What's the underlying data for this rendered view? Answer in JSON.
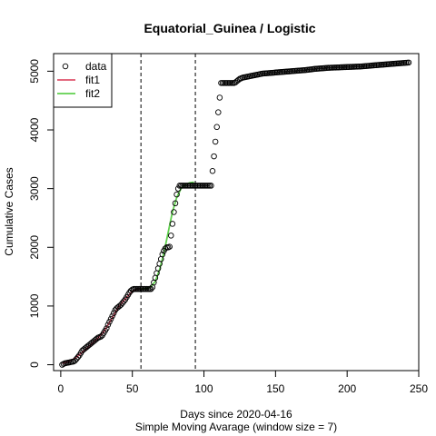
{
  "chart_data": {
    "type": "scatter",
    "title": "Equatorial_Guinea / Logistic",
    "xlabel": "Days since 2020-04-16",
    "xlabel2": "Simple Moving Avarage (window size = 7)",
    "ylabel": "Cumulative Cases",
    "xlim": [
      -5,
      250
    ],
    "ylim": [
      -100,
      5300
    ],
    "x_ticks": [
      0,
      50,
      100,
      150,
      200,
      250
    ],
    "y_ticks": [
      0,
      1000,
      2000,
      3000,
      4000,
      5000
    ],
    "vlines": [
      56,
      94
    ],
    "legend": {
      "position": "top-left",
      "entries": [
        {
          "label": "data",
          "kind": "point",
          "color": "#000000"
        },
        {
          "label": "fit1",
          "kind": "line",
          "color": "#DF536B"
        },
        {
          "label": "fit2",
          "kind": "line",
          "color": "#61D04F"
        }
      ]
    },
    "series": [
      {
        "name": "data",
        "points": [
          [
            1,
            0
          ],
          [
            2,
            15
          ],
          [
            3,
            25
          ],
          [
            4,
            30
          ],
          [
            5,
            35
          ],
          [
            6,
            40
          ],
          [
            7,
            45
          ],
          [
            8,
            50
          ],
          [
            9,
            55
          ],
          [
            10,
            70
          ],
          [
            11,
            100
          ],
          [
            12,
            130
          ],
          [
            13,
            160
          ],
          [
            14,
            200
          ],
          [
            15,
            240
          ],
          [
            16,
            260
          ],
          [
            17,
            280
          ],
          [
            18,
            300
          ],
          [
            19,
            320
          ],
          [
            20,
            340
          ],
          [
            21,
            360
          ],
          [
            22,
            380
          ],
          [
            23,
            400
          ],
          [
            24,
            420
          ],
          [
            25,
            440
          ],
          [
            26,
            460
          ],
          [
            27,
            470
          ],
          [
            28,
            480
          ],
          [
            29,
            500
          ],
          [
            30,
            540
          ],
          [
            31,
            580
          ],
          [
            32,
            620
          ],
          [
            33,
            680
          ],
          [
            34,
            730
          ],
          [
            35,
            780
          ],
          [
            36,
            830
          ],
          [
            37,
            880
          ],
          [
            38,
            930
          ],
          [
            39,
            960
          ],
          [
            40,
            980
          ],
          [
            41,
            1000
          ],
          [
            42,
            1020
          ],
          [
            43,
            1050
          ],
          [
            44,
            1080
          ],
          [
            45,
            1110
          ],
          [
            46,
            1150
          ],
          [
            47,
            1190
          ],
          [
            48,
            1230
          ],
          [
            49,
            1260
          ],
          [
            50,
            1280
          ],
          [
            51,
            1290
          ],
          [
            52,
            1290
          ],
          [
            53,
            1290
          ],
          [
            54,
            1290
          ],
          [
            55,
            1290
          ],
          [
            56,
            1290
          ],
          [
            57,
            1290
          ],
          [
            58,
            1290
          ],
          [
            59,
            1290
          ],
          [
            60,
            1290
          ],
          [
            61,
            1290
          ],
          [
            62,
            1290
          ],
          [
            63,
            1290
          ],
          [
            64,
            1320
          ],
          [
            65,
            1400
          ],
          [
            66,
            1480
          ],
          [
            67,
            1560
          ],
          [
            68,
            1640
          ],
          [
            69,
            1720
          ],
          [
            70,
            1800
          ],
          [
            71,
            1880
          ],
          [
            72,
            1940
          ],
          [
            73,
            1980
          ],
          [
            74,
            2000
          ],
          [
            75,
            2000
          ],
          [
            76,
            2010
          ],
          [
            77,
            2200
          ],
          [
            78,
            2400
          ],
          [
            79,
            2600
          ],
          [
            80,
            2750
          ],
          [
            81,
            2900
          ],
          [
            82,
            3000
          ],
          [
            83,
            3050
          ],
          [
            84,
            3050
          ],
          [
            85,
            3050
          ],
          [
            86,
            3050
          ],
          [
            87,
            3050
          ],
          [
            88,
            3050
          ],
          [
            89,
            3050
          ],
          [
            90,
            3050
          ],
          [
            91,
            3050
          ],
          [
            92,
            3050
          ],
          [
            93,
            3050
          ],
          [
            94,
            3050
          ],
          [
            95,
            3050
          ],
          [
            96,
            3050
          ],
          [
            97,
            3050
          ],
          [
            98,
            3050
          ],
          [
            99,
            3050
          ],
          [
            100,
            3050
          ],
          [
            101,
            3050
          ],
          [
            102,
            3050
          ],
          [
            103,
            3050
          ],
          [
            104,
            3050
          ],
          [
            105,
            3050
          ],
          [
            106,
            3300
          ],
          [
            107,
            3550
          ],
          [
            108,
            3800
          ],
          [
            109,
            4050
          ],
          [
            110,
            4300
          ],
          [
            111,
            4550
          ],
          [
            112,
            4800
          ],
          [
            113,
            4800
          ],
          [
            114,
            4800
          ],
          [
            115,
            4800
          ],
          [
            116,
            4800
          ],
          [
            117,
            4800
          ],
          [
            118,
            4800
          ],
          [
            119,
            4800
          ],
          [
            120,
            4800
          ],
          [
            121,
            4800
          ],
          [
            122,
            4810
          ],
          [
            123,
            4830
          ],
          [
            124,
            4850
          ],
          [
            125,
            4870
          ],
          [
            126,
            4880
          ],
          [
            127,
            4890
          ],
          [
            128,
            4895
          ],
          [
            129,
            4900
          ],
          [
            130,
            4905
          ],
          [
            131,
            4910
          ],
          [
            132,
            4915
          ],
          [
            133,
            4920
          ],
          [
            134,
            4925
          ],
          [
            135,
            4930
          ],
          [
            136,
            4935
          ],
          [
            137,
            4940
          ],
          [
            138,
            4945
          ],
          [
            139,
            4950
          ],
          [
            140,
            4955
          ],
          [
            141,
            4960
          ],
          [
            142,
            4962
          ],
          [
            143,
            4964
          ],
          [
            144,
            4966
          ],
          [
            145,
            4968
          ],
          [
            146,
            4970
          ],
          [
            147,
            4972
          ],
          [
            148,
            4974
          ],
          [
            149,
            4976
          ],
          [
            150,
            4978
          ],
          [
            151,
            4980
          ],
          [
            152,
            4982
          ],
          [
            153,
            4984
          ],
          [
            154,
            4986
          ],
          [
            155,
            4988
          ],
          [
            156,
            4990
          ],
          [
            157,
            4992
          ],
          [
            158,
            4994
          ],
          [
            159,
            4996
          ],
          [
            160,
            4998
          ],
          [
            161,
            5000
          ],
          [
            162,
            5002
          ],
          [
            163,
            5004
          ],
          [
            164,
            5006
          ],
          [
            165,
            5008
          ],
          [
            166,
            5010
          ],
          [
            167,
            5012
          ],
          [
            168,
            5014
          ],
          [
            169,
            5016
          ],
          [
            170,
            5018
          ],
          [
            171,
            5020
          ],
          [
            172,
            5023
          ],
          [
            173,
            5026
          ],
          [
            174,
            5029
          ],
          [
            175,
            5032
          ],
          [
            176,
            5035
          ],
          [
            177,
            5038
          ],
          [
            178,
            5040
          ],
          [
            179,
            5042
          ],
          [
            180,
            5044
          ],
          [
            181,
            5046
          ],
          [
            182,
            5048
          ],
          [
            183,
            5050
          ],
          [
            184,
            5052
          ],
          [
            185,
            5054
          ],
          [
            186,
            5056
          ],
          [
            187,
            5058
          ],
          [
            188,
            5059
          ],
          [
            189,
            5060
          ],
          [
            190,
            5061
          ],
          [
            191,
            5062
          ],
          [
            192,
            5063
          ],
          [
            193,
            5064
          ],
          [
            194,
            5065
          ],
          [
            195,
            5066
          ],
          [
            196,
            5067
          ],
          [
            197,
            5068
          ],
          [
            198,
            5069
          ],
          [
            199,
            5070
          ],
          [
            200,
            5071
          ],
          [
            201,
            5072
          ],
          [
            202,
            5073
          ],
          [
            203,
            5074
          ],
          [
            204,
            5075
          ],
          [
            205,
            5076
          ],
          [
            206,
            5077
          ],
          [
            207,
            5078
          ],
          [
            208,
            5079
          ],
          [
            209,
            5080
          ],
          [
            210,
            5082
          ],
          [
            211,
            5084
          ],
          [
            212,
            5086
          ],
          [
            213,
            5088
          ],
          [
            214,
            5090
          ],
          [
            215,
            5092
          ],
          [
            216,
            5094
          ],
          [
            217,
            5096
          ],
          [
            218,
            5098
          ],
          [
            219,
            5100
          ],
          [
            220,
            5102
          ],
          [
            221,
            5104
          ],
          [
            222,
            5106
          ],
          [
            223,
            5108
          ],
          [
            224,
            5110
          ],
          [
            225,
            5112
          ],
          [
            226,
            5114
          ],
          [
            227,
            5116
          ],
          [
            228,
            5118
          ],
          [
            229,
            5120
          ],
          [
            230,
            5122
          ],
          [
            231,
            5124
          ],
          [
            232,
            5126
          ],
          [
            233,
            5128
          ],
          [
            234,
            5130
          ],
          [
            235,
            5132
          ],
          [
            236,
            5134
          ],
          [
            237,
            5136
          ],
          [
            238,
            5138
          ],
          [
            239,
            5140
          ],
          [
            240,
            5142
          ],
          [
            241,
            5144
          ],
          [
            242,
            5146
          ],
          [
            243,
            5148
          ]
        ]
      },
      {
        "name": "fit1",
        "color": "#DF536B",
        "points": [
          [
            1,
            20
          ],
          [
            5,
            50
          ],
          [
            10,
            110
          ],
          [
            15,
            210
          ],
          [
            20,
            320
          ],
          [
            25,
            430
          ],
          [
            30,
            560
          ],
          [
            35,
            760
          ],
          [
            40,
            970
          ],
          [
            45,
            1120
          ],
          [
            50,
            1250
          ],
          [
            53,
            1285
          ],
          [
            56,
            1300
          ]
        ]
      },
      {
        "name": "fit2",
        "color": "#61D04F",
        "points": [
          [
            56,
            1290
          ],
          [
            60,
            1300
          ],
          [
            63,
            1330
          ],
          [
            66,
            1420
          ],
          [
            69,
            1620
          ],
          [
            72,
            1900
          ],
          [
            75,
            2250
          ],
          [
            78,
            2600
          ],
          [
            81,
            2850
          ],
          [
            84,
            3000
          ],
          [
            87,
            3070
          ],
          [
            90,
            3100
          ],
          [
            93,
            3110
          ]
        ]
      }
    ]
  }
}
